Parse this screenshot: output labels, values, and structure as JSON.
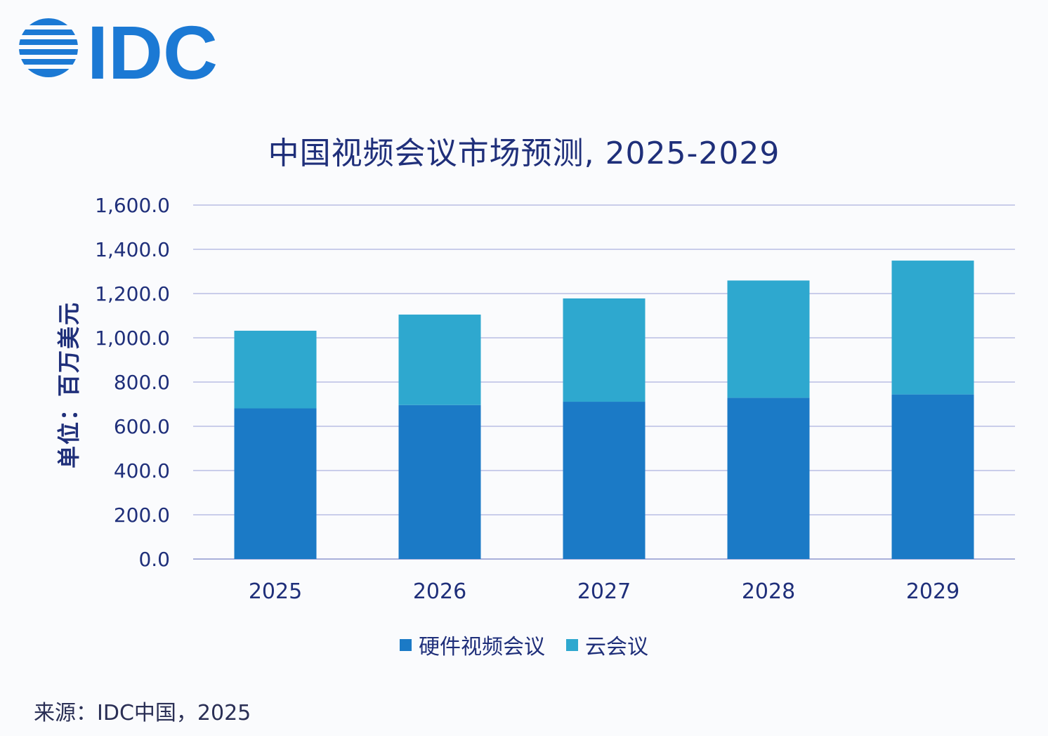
{
  "logo": {
    "text": "IDC",
    "color": "#1b79d4"
  },
  "chart_data": {
    "type": "bar",
    "stacked": true,
    "title": "中国视频会议市场预测, 2025-2029",
    "ylabel": "单位：百万美元",
    "xlabel": "",
    "categories": [
      "2025",
      "2026",
      "2027",
      "2028",
      "2029"
    ],
    "series": [
      {
        "name": "硬件视频会议",
        "color": "#1b7ac6",
        "values": [
          681,
          696,
          711,
          729,
          744
        ]
      },
      {
        "name": "云会议",
        "color": "#2ea8cf",
        "values": [
          351,
          409,
          467,
          530,
          605
        ]
      }
    ],
    "ylim": [
      0,
      1600
    ],
    "yticks": [
      "0.0",
      "200.0",
      "400.0",
      "600.0",
      "800.0",
      "1,000.0",
      "1,200.0",
      "1,400.0",
      "1,600.0"
    ],
    "grid": true,
    "legend_position": "bottom"
  },
  "source": "来源：IDC中国，2025"
}
